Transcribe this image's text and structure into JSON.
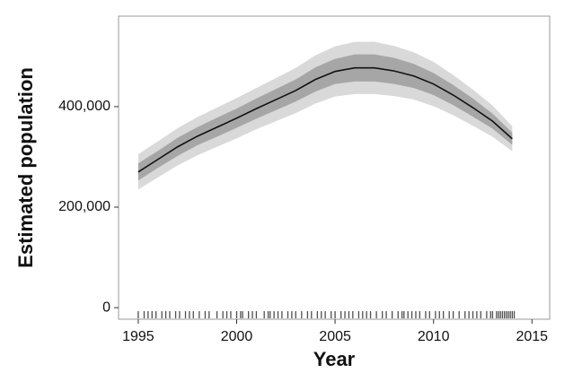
{
  "chart_data": {
    "type": "line",
    "x_label": "Year",
    "y_label": "Estimated population",
    "x": [
      1995,
      1996,
      1997,
      1998,
      1999,
      2000,
      2001,
      2002,
      2003,
      2004,
      2005,
      2006,
      2007,
      2008,
      2009,
      2010,
      2011,
      2012,
      2013,
      2014
    ],
    "values": [
      270000,
      295000,
      320000,
      341000,
      359000,
      377000,
      396000,
      414000,
      432000,
      454000,
      470000,
      477000,
      477000,
      471000,
      461000,
      445000,
      423000,
      398000,
      371000,
      336000
    ],
    "color": "#111111",
    "bands": [
      {
        "color": "#d9d9d9",
        "upper": [
          305000,
          331000,
          357000,
          379000,
          398000,
          417000,
          437000,
          457000,
          477000,
          502000,
          520000,
          529000,
          529000,
          521000,
          508000,
          489000,
          463000,
          434000,
          402000,
          361000
        ],
        "lower": [
          235000,
          259000,
          283000,
          303000,
          320000,
          337000,
          355000,
          371000,
          387000,
          406000,
          420000,
          425000,
          425000,
          421000,
          414000,
          401000,
          383000,
          362000,
          340000,
          311000
        ]
      },
      {
        "color": "#a6a6a6",
        "upper": [
          287000,
          312000,
          338000,
          359000,
          378000,
          396000,
          416000,
          435000,
          454000,
          478000,
          495000,
          504000,
          504000,
          497000,
          485000,
          467000,
          443000,
          416000,
          386000,
          348000
        ],
        "lower": [
          253000,
          278000,
          302000,
          323000,
          340000,
          358000,
          376000,
          393000,
          410000,
          430000,
          445000,
          450000,
          450000,
          445000,
          437000,
          423000,
          403000,
          380000,
          356000,
          324000
        ]
      }
    ],
    "rug": [
      1995.0,
      1995.3,
      1995.5,
      1995.7,
      1995.9,
      1996.2,
      1996.4,
      1996.6,
      1996.9,
      1997.1,
      1997.4,
      1997.6,
      1997.8,
      1998.1,
      1998.4,
      1998.6,
      1999.0,
      1999.3,
      1999.5,
      1999.7,
      2000.0,
      2000.2,
      2000.3,
      2000.6,
      2000.8,
      2001.0,
      2001.4,
      2001.6,
      2001.7,
      2001.9,
      2002.1,
      2002.3,
      2002.6,
      2002.8,
      2003.0,
      2003.3,
      2003.6,
      2003.8,
      2004.1,
      2004.3,
      2004.5,
      2004.8,
      2005.0,
      2005.3,
      2005.5,
      2005.7,
      2005.9,
      2006.2,
      2006.4,
      2006.6,
      2006.8,
      2007.1,
      2007.4,
      2007.6,
      2007.9,
      2008.2,
      2008.4,
      2008.5,
      2008.7,
      2008.9,
      2009.1,
      2009.3,
      2009.6,
      2009.8,
      2010.1,
      2010.3,
      2010.5,
      2010.8,
      2011.0,
      2011.3,
      2011.6,
      2011.8,
      2012.0,
      2012.2,
      2012.4,
      2012.7,
      2012.9,
      2013.0,
      2013.2,
      2013.3,
      2013.4,
      2013.5,
      2013.6,
      2013.7,
      2013.8,
      2013.9,
      2014.0,
      2014.1
    ],
    "rug_color": "#222222",
    "xlim": [
      1994,
      2015.9
    ],
    "xticks": [
      1995,
      2000,
      2005,
      2010,
      2015
    ],
    "ylim": [
      -23000,
      580000
    ],
    "yticks": [
      0,
      {
        "value": 200000,
        "label": "200,000"
      },
      {
        "value": 400000,
        "label": "400,000"
      }
    ],
    "grid": false
  }
}
